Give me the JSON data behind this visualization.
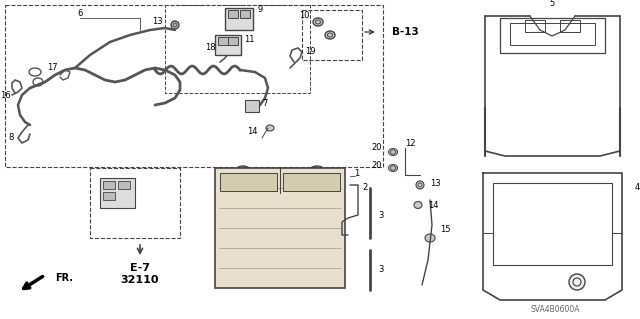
{
  "bg_color": "#ffffff",
  "line_color": "#444444",
  "catalog_num": "SVA4B0600A",
  "ref_label": "B-13",
  "callout_e7": "E-7",
  "callout_32110": "32110",
  "figsize": [
    6.4,
    3.19
  ],
  "dpi": 100
}
